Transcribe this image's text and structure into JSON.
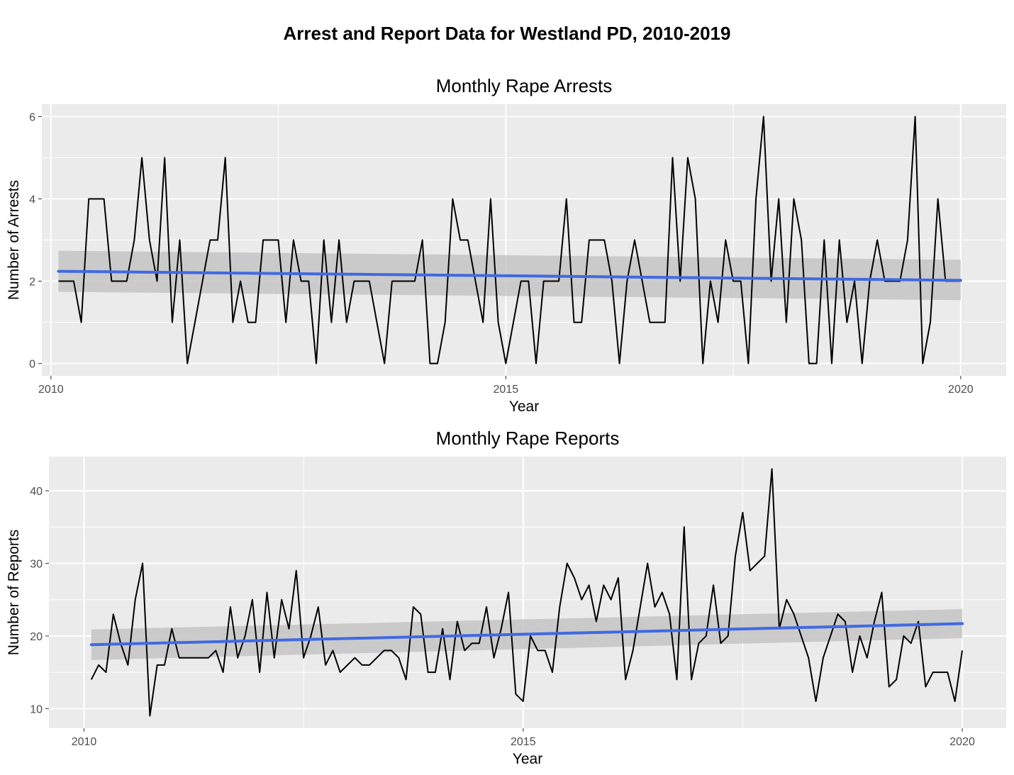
{
  "title": "Arrest and Report Data for Westland PD, 2010-2019",
  "colors": {
    "panel_bg": "#ebebeb",
    "grid": "#ffffff",
    "series_line": "#000000",
    "trend_line": "#4169e1",
    "confidence_band": "#c4c4c4"
  },
  "chart_data": [
    {
      "type": "line",
      "title": "Monthly Rape Arrests",
      "xlabel": "Year",
      "ylabel": "Number of Arrests",
      "xlim": [
        2009.9,
        2020.5
      ],
      "ylim": [
        -0.3,
        6.3
      ],
      "xticks": [
        2010,
        2015,
        2020
      ],
      "xtick_labels": [
        "2010",
        "2015",
        "2020"
      ],
      "yticks": [
        0,
        2,
        4,
        6
      ],
      "ytick_labels": [
        "0",
        "2",
        "4",
        "6"
      ],
      "grid": true,
      "x_start": 2010.083,
      "x_step": 0.08333,
      "values": [
        2,
        2,
        2,
        1,
        4,
        4,
        4,
        2,
        2,
        2,
        3,
        5,
        3,
        2,
        5,
        1,
        3,
        0,
        1,
        2,
        3,
        3,
        5,
        1,
        2,
        1,
        1,
        3,
        3,
        3,
        1,
        3,
        2,
        2,
        0,
        3,
        1,
        3,
        1,
        2,
        2,
        2,
        1,
        0,
        2,
        2,
        2,
        2,
        3,
        0,
        0,
        1,
        4,
        3,
        3,
        2,
        1,
        4,
        1,
        0,
        1,
        2,
        2,
        0,
        2,
        2,
        2,
        4,
        1,
        1,
        3,
        3,
        3,
        2,
        0,
        2,
        3,
        2,
        1,
        1,
        1,
        5,
        2,
        5,
        4,
        0,
        2,
        1,
        3,
        2,
        2,
        0,
        4,
        6,
        2,
        4,
        1,
        4,
        3,
        0,
        0,
        3,
        0,
        3,
        1,
        2,
        0,
        2,
        3,
        2,
        2,
        2,
        3,
        6,
        0,
        1,
        4,
        2,
        2,
        2
      ],
      "trend": {
        "start": [
          2010.083,
          2.24
        ],
        "end": [
          2020.0,
          2.02
        ],
        "band_start": [
          1.74,
          2.74
        ],
        "band_end": [
          1.54,
          2.52
        ]
      }
    },
    {
      "type": "line",
      "title": "Monthly Rape Reports",
      "xlabel": "Year",
      "ylabel": "Number of Reports",
      "xlim": [
        2009.6,
        2020.5
      ],
      "ylim": [
        7.3,
        44.7
      ],
      "xticks": [
        2010,
        2015,
        2020
      ],
      "xtick_labels": [
        "2010",
        "2015",
        "2020"
      ],
      "yticks": [
        10,
        20,
        30,
        40
      ],
      "ytick_labels": [
        "10",
        "20",
        "30",
        "40"
      ],
      "grid": true,
      "x_start": 2010.083,
      "x_step": 0.08333,
      "values": [
        14,
        16,
        15,
        23,
        19,
        16,
        25,
        30,
        9,
        16,
        16,
        21,
        17,
        17,
        17,
        17,
        17,
        18,
        15,
        24,
        17,
        20,
        25,
        15,
        26,
        17,
        25,
        21,
        29,
        17,
        20,
        24,
        16,
        18,
        15,
        16,
        17,
        16,
        16,
        17,
        18,
        18,
        17,
        14,
        24,
        23,
        15,
        15,
        21,
        14,
        22,
        18,
        19,
        19,
        24,
        17,
        21,
        26,
        12,
        11,
        20,
        18,
        18,
        15,
        24,
        30,
        28,
        25,
        27,
        22,
        27,
        25,
        28,
        14,
        18,
        24,
        30,
        24,
        26,
        23,
        14,
        35,
        14,
        19,
        20,
        27,
        19,
        20,
        31,
        37,
        29,
        30,
        31,
        43,
        21,
        25,
        23,
        20,
        17,
        11,
        17,
        20,
        23,
        22,
        15,
        20,
        17,
        22,
        26,
        13,
        14,
        20,
        19,
        22,
        13,
        15,
        15,
        15,
        11,
        18
      ],
      "trend": {
        "start": [
          2010.083,
          18.8
        ],
        "end": [
          2020.0,
          21.7
        ],
        "band_start": [
          16.7,
          20.9
        ],
        "band_end": [
          19.7,
          23.7
        ]
      }
    }
  ]
}
